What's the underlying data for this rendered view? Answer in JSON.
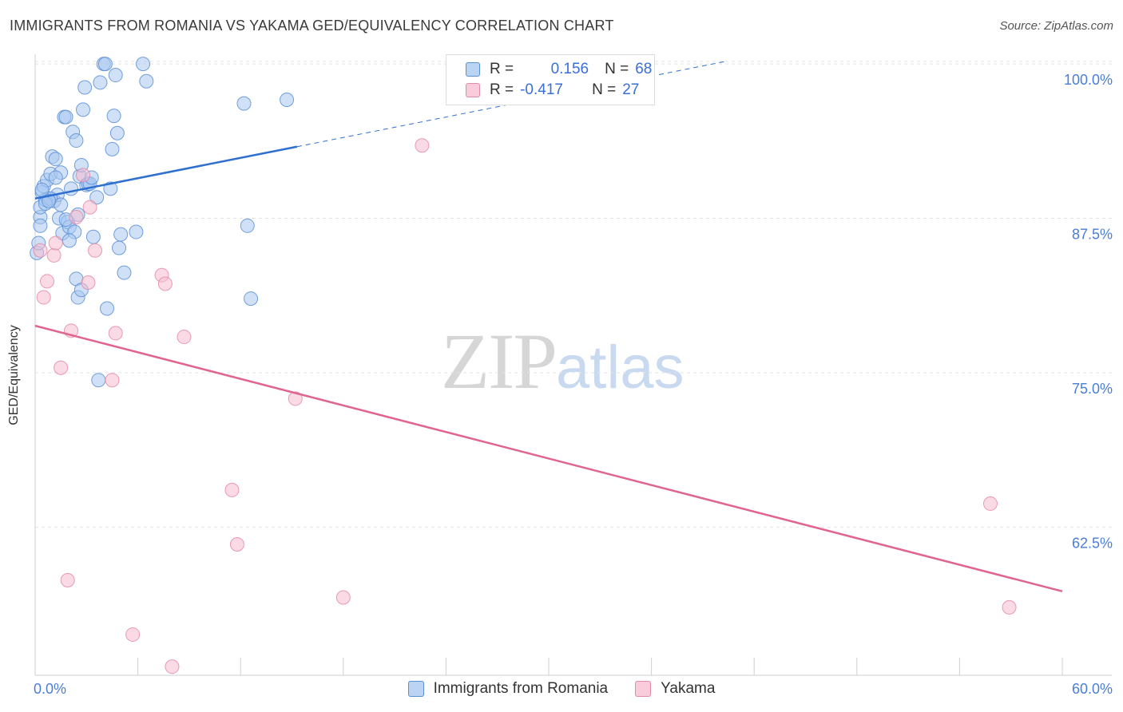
{
  "header": {
    "title": "IMMIGRANTS FROM ROMANIA VS YAKAMA GED/EQUIVALENCY CORRELATION CHART",
    "source": "Source: ZipAtlas.com"
  },
  "watermark": {
    "zip": "ZIP",
    "atlas": "atlas"
  },
  "legend": {
    "row1": {
      "r_label": "R =",
      "r_value": "0.156",
      "n_label": "N =",
      "n_value": "68"
    },
    "row2": {
      "r_label": "R =",
      "r_value": "-0.417",
      "n_label": "N =",
      "n_value": "27"
    }
  },
  "bottom_legend": {
    "series1": "Immigrants from Romania",
    "series2": "Yakama"
  },
  "colors": {
    "blue_fill": "#a9c8f0",
    "blue_stroke": "#5b8fd6",
    "blue_line": "#2f6fd0",
    "pink_fill": "#f6bdd0",
    "pink_stroke": "#e58aa8",
    "pink_line": "#e0648f",
    "grid": "#e4e4e4",
    "tick_text": "#4a7ed6"
  },
  "chart_data": {
    "type": "scatter",
    "title": "IMMIGRANTS FROM ROMANIA VS YAKAMA GED/EQUIVALENCY CORRELATION CHART",
    "xlabel": "",
    "ylabel": "GED/Equivalency",
    "xlim": [
      0,
      60
    ],
    "ylim": [
      50.5,
      101.3
    ],
    "x_ticks": [
      0,
      60
    ],
    "x_tick_labels": [
      "0.0%",
      "60.0%"
    ],
    "y_ticks": [
      62.5,
      75.0,
      87.5,
      100.0
    ],
    "y_tick_labels": [
      "62.5%",
      "75.0%",
      "87.5%",
      "100.0%"
    ],
    "grid": true,
    "legend_position": "top-center",
    "series": [
      {
        "name": "Immigrants from Romania",
        "R": 0.156,
        "N": 68,
        "trend": {
          "x": [
            0,
            15.3
          ],
          "y": [
            89.1,
            93.3
          ],
          "dashed_extension": {
            "x": [
              15.3,
              40.3
            ],
            "y": [
              93.3,
              100.2
            ]
          }
        },
        "points": [
          [
            0.1,
            84.7
          ],
          [
            0.2,
            85.5
          ],
          [
            0.3,
            87.6
          ],
          [
            0.3,
            88.4
          ],
          [
            0.4,
            89.6
          ],
          [
            0.5,
            90.1
          ],
          [
            0.6,
            89.0
          ],
          [
            0.7,
            90.6
          ],
          [
            0.8,
            89.1
          ],
          [
            0.9,
            91.1
          ],
          [
            1.0,
            92.5
          ],
          [
            1.1,
            88.9
          ],
          [
            1.2,
            92.3
          ],
          [
            1.3,
            89.4
          ],
          [
            1.4,
            87.5
          ],
          [
            1.5,
            91.2
          ],
          [
            1.6,
            86.3
          ],
          [
            1.7,
            95.7
          ],
          [
            1.8,
            95.7
          ],
          [
            1.9,
            87.2
          ],
          [
            2.0,
            86.8
          ],
          [
            2.1,
            89.9
          ],
          [
            2.2,
            94.5
          ],
          [
            2.3,
            86.4
          ],
          [
            2.4,
            93.8
          ],
          [
            2.5,
            87.8
          ],
          [
            2.6,
            90.9
          ],
          [
            2.7,
            91.8
          ],
          [
            2.8,
            96.3
          ],
          [
            2.9,
            98.1
          ],
          [
            3.0,
            90.2
          ],
          [
            3.1,
            90.3
          ],
          [
            3.2,
            90.3
          ],
          [
            3.3,
            90.8
          ],
          [
            3.4,
            86.0
          ],
          [
            3.6,
            89.2
          ],
          [
            3.8,
            98.5
          ],
          [
            4.0,
            100.0
          ],
          [
            4.1,
            100.0
          ],
          [
            4.2,
            80.2
          ],
          [
            4.4,
            89.9
          ],
          [
            4.5,
            93.1
          ],
          [
            4.6,
            95.8
          ],
          [
            4.7,
            99.1
          ],
          [
            4.8,
            94.4
          ],
          [
            4.9,
            85.1
          ],
          [
            5.0,
            86.2
          ],
          [
            5.2,
            83.1
          ],
          [
            5.9,
            86.4
          ],
          [
            6.3,
            100.0
          ],
          [
            6.5,
            98.6
          ],
          [
            12.2,
            96.8
          ],
          [
            12.4,
            86.9
          ],
          [
            12.6,
            81.0
          ],
          [
            14.7,
            97.1
          ],
          [
            2.4,
            82.6
          ],
          [
            2.5,
            81.1
          ],
          [
            2.7,
            81.7
          ],
          [
            3.7,
            74.4
          ],
          [
            0.9,
            89.1
          ],
          [
            1.2,
            90.8
          ],
          [
            0.6,
            88.7
          ],
          [
            0.4,
            89.8
          ],
          [
            1.5,
            88.6
          ],
          [
            1.8,
            87.4
          ],
          [
            2.0,
            85.7
          ],
          [
            0.3,
            86.9
          ],
          [
            0.8,
            88.9
          ]
        ]
      },
      {
        "name": "Yakama",
        "R": -0.417,
        "N": 27,
        "trend": {
          "x": [
            0,
            60
          ],
          "y": [
            78.8,
            57.3
          ]
        },
        "points": [
          [
            0.3,
            84.9
          ],
          [
            0.5,
            81.1
          ],
          [
            0.7,
            82.4
          ],
          [
            1.1,
            84.5
          ],
          [
            1.2,
            85.5
          ],
          [
            1.5,
            75.4
          ],
          [
            1.9,
            58.2
          ],
          [
            2.1,
            78.4
          ],
          [
            2.4,
            87.6
          ],
          [
            2.8,
            91.0
          ],
          [
            3.1,
            82.3
          ],
          [
            3.2,
            88.4
          ],
          [
            3.5,
            84.9
          ],
          [
            4.5,
            74.4
          ],
          [
            4.7,
            78.2
          ],
          [
            5.7,
            53.8
          ],
          [
            7.4,
            82.9
          ],
          [
            7.6,
            82.2
          ],
          [
            8.0,
            51.2
          ],
          [
            8.7,
            77.9
          ],
          [
            11.5,
            65.5
          ],
          [
            11.8,
            61.1
          ],
          [
            15.2,
            72.9
          ],
          [
            18.0,
            56.8
          ],
          [
            22.6,
            93.4
          ],
          [
            55.8,
            64.4
          ],
          [
            56.9,
            56.0
          ]
        ]
      }
    ]
  }
}
